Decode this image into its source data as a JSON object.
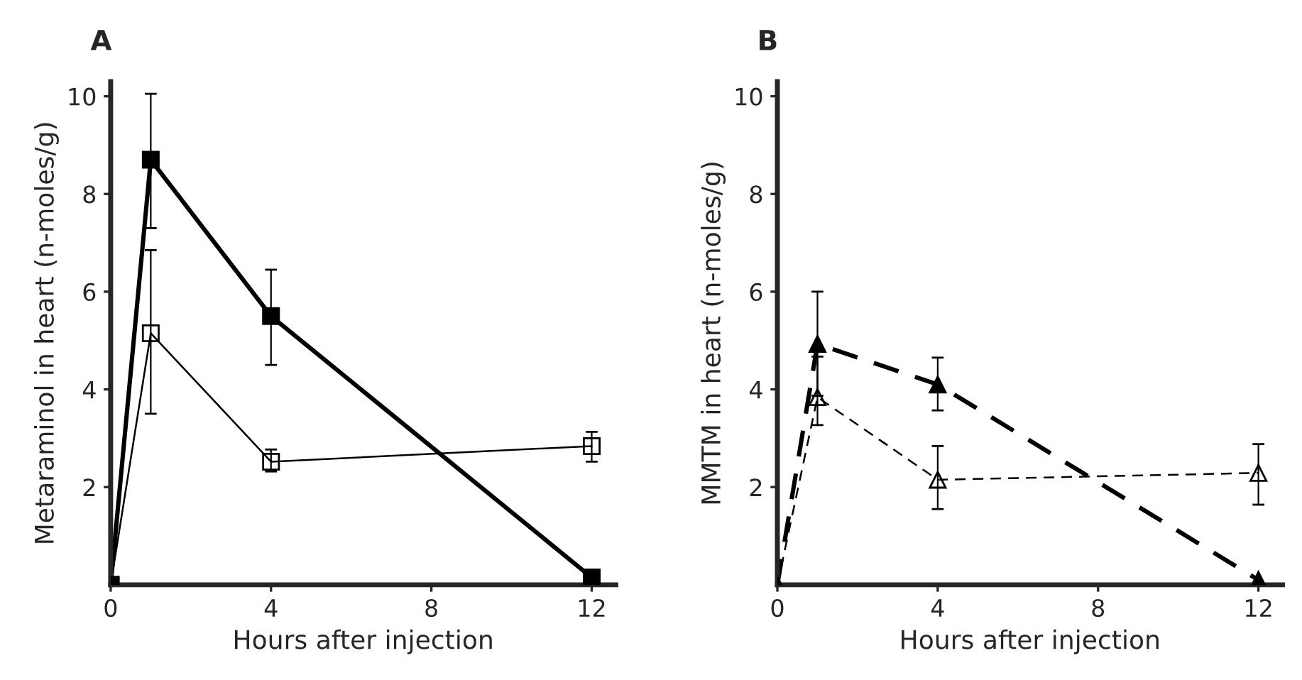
{
  "chart_data": [
    {
      "type": "line",
      "title": "A",
      "xlabel": "Hours after injection",
      "ylabel": "Metaraminol in heart (n-moles/g)",
      "x": [
        0,
        1,
        4,
        12
      ],
      "xlim": [
        0,
        12.6
      ],
      "ylim": [
        0,
        10.3
      ],
      "xticks": [
        0,
        4,
        8,
        12
      ],
      "yticks": [
        2,
        4,
        6,
        8,
        10
      ],
      "grid": false,
      "legend": false,
      "marker": "square",
      "line_style": "solid",
      "series": [
        {
          "color": "#000000",
          "values": [
            0,
            8.7,
            5.5,
            0.15
          ],
          "errors": [
            null,
            [
              7.3,
              10.05
            ],
            [
              4.5,
              6.45
            ],
            null
          ]
        },
        {
          "color": "#000000",
          "values": [
            0,
            5.15,
            2.52,
            2.84
          ],
          "errors": [
            null,
            [
              3.5,
              6.85
            ],
            [
              2.32,
              2.77
            ],
            [
              2.52,
              3.13
            ]
          ]
        }
      ]
    },
    {
      "type": "line",
      "title": "B",
      "xlabel": "Hours after injection",
      "ylabel": "MMTM in heart (n-moles/g)",
      "x": [
        0,
        1,
        4,
        12
      ],
      "xlim": [
        0,
        12.6
      ],
      "ylim": [
        0,
        10.3
      ],
      "xticks": [
        0,
        4,
        8,
        12
      ],
      "yticks": [
        2,
        4,
        6,
        8,
        10
      ],
      "grid": false,
      "legend": false,
      "marker": "triangle",
      "line_style": "dashed",
      "series": [
        {
          "color": "#000000",
          "values": [
            0,
            4.93,
            4.1,
            0.1
          ],
          "errors": [
            null,
            [
              3.87,
              6.0
            ],
            [
              3.57,
              4.65
            ],
            null
          ]
        },
        {
          "color": "#000000",
          "values": [
            0,
            3.84,
            2.15,
            2.29
          ],
          "errors": [
            null,
            [
              3.27,
              4.67
            ],
            [
              1.55,
              2.84
            ],
            [
              1.64,
              2.88
            ]
          ]
        }
      ]
    }
  ]
}
